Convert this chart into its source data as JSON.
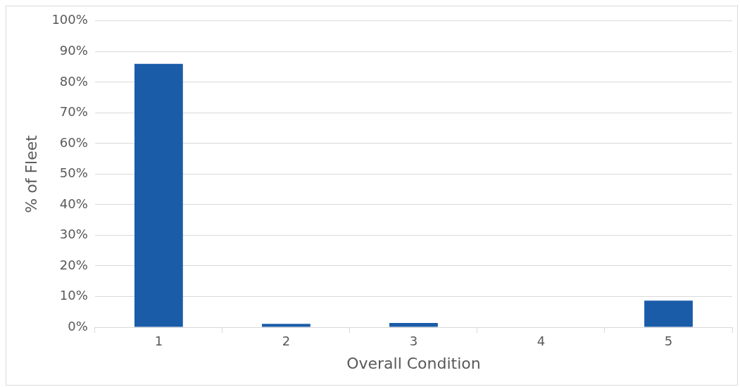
{
  "chart_data": {
    "type": "bar",
    "xlabel": "Overall Condition",
    "ylabel": "% of Fleet",
    "categories": [
      "1",
      "2",
      "3",
      "4",
      "5"
    ],
    "values": [
      86,
      1.1,
      1.4,
      0,
      8.7
    ],
    "color": "#1a5ca8",
    "ylim": [
      0,
      100
    ],
    "yticks": [
      {
        "value": 0,
        "label": "0%"
      },
      {
        "value": 10,
        "label": "10%"
      },
      {
        "value": 20,
        "label": "20%"
      },
      {
        "value": 30,
        "label": "30%"
      },
      {
        "value": 40,
        "label": "40%"
      },
      {
        "value": 50,
        "label": "50%"
      },
      {
        "value": 60,
        "label": "60%"
      },
      {
        "value": 70,
        "label": "70%"
      },
      {
        "value": 80,
        "label": "80%"
      },
      {
        "value": 90,
        "label": "90%"
      },
      {
        "value": 100,
        "label": "100%"
      }
    ],
    "grid": "y",
    "legend": false
  }
}
